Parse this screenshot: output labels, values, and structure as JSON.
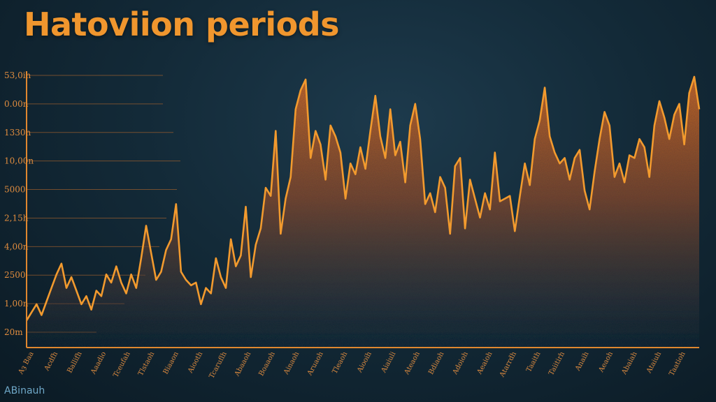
{
  "title": "Hatoviion periods",
  "corner_label": "ABinauh",
  "colors": {
    "line": "#f29a2e",
    "axis": "#e0872f",
    "gridline": "#c4702c",
    "title": "#f0962e",
    "background": "#132a38"
  },
  "chart_data": {
    "type": "area",
    "title": "Hatoviion periods",
    "xlabel": "",
    "ylabel": "",
    "grid": true,
    "y_tick_labels": [
      "53,0in",
      "0.00n",
      "1330h",
      "10,00n",
      "5000",
      "2,15h",
      "4,00n",
      "2500",
      "1,00n",
      "20m"
    ],
    "x_tick_labels": [
      "Aȝ Baa",
      "Acdfh",
      "Ballifh",
      "Aaadio",
      "Tceufah",
      "Tlstaoh",
      "Biaaon",
      "Aiooth",
      "Tcaruflh",
      "Abaaoh",
      "Boaaoh",
      "Ainaoh",
      "Aruaoh",
      "Tleaoh",
      "Aiooih",
      "Aiaiuli",
      "Ateaoh",
      "Bdiaoh",
      "Adoioh",
      "Aeaioh",
      "Atarrdh",
      "Taaith",
      "Taiitirh",
      "Anaih",
      "Aeaoh",
      "Abaiah",
      "Ataiuh",
      "Taatioh"
    ],
    "x": [
      0,
      1,
      2,
      3,
      4,
      5,
      6,
      7,
      8,
      9,
      10,
      11,
      12,
      13,
      14,
      15,
      16,
      17,
      18,
      19,
      20,
      21,
      22,
      23,
      24,
      25,
      26,
      27,
      28,
      29,
      30,
      31,
      32,
      33,
      34,
      35,
      36,
      37,
      38,
      39,
      40,
      41,
      42,
      43,
      44,
      45,
      46,
      47,
      48,
      49,
      50,
      51,
      52,
      53,
      54,
      55,
      56,
      57,
      58,
      59,
      60,
      61,
      62,
      63,
      64,
      65,
      66,
      67,
      68,
      69,
      70,
      71,
      72,
      73,
      74,
      75,
      76,
      77,
      78,
      79,
      80,
      81,
      82,
      83,
      84,
      85,
      86,
      87,
      88,
      89,
      90,
      91,
      92,
      93,
      94,
      95,
      96,
      97,
      98,
      99,
      100,
      101,
      102,
      103,
      104,
      105,
      106,
      107,
      108,
      109,
      110,
      111,
      112,
      113,
      114,
      115,
      116,
      117,
      118,
      119,
      120,
      121,
      122,
      123,
      124,
      125,
      126,
      127,
      128,
      129,
      130,
      131,
      132,
      133,
      134,
      135
    ],
    "values": [
      0.1,
      0.13,
      0.16,
      0.12,
      0.17,
      0.22,
      0.27,
      0.31,
      0.22,
      0.26,
      0.21,
      0.16,
      0.19,
      0.14,
      0.21,
      0.19,
      0.27,
      0.24,
      0.3,
      0.24,
      0.2,
      0.27,
      0.22,
      0.33,
      0.45,
      0.35,
      0.25,
      0.28,
      0.36,
      0.4,
      0.53,
      0.28,
      0.25,
      0.23,
      0.24,
      0.16,
      0.22,
      0.2,
      0.33,
      0.26,
      0.22,
      0.4,
      0.3,
      0.34,
      0.52,
      0.26,
      0.38,
      0.44,
      0.59,
      0.56,
      0.8,
      0.42,
      0.55,
      0.63,
      0.88,
      0.95,
      0.99,
      0.7,
      0.8,
      0.75,
      0.62,
      0.82,
      0.78,
      0.72,
      0.55,
      0.68,
      0.64,
      0.74,
      0.66,
      0.8,
      0.93,
      0.78,
      0.7,
      0.88,
      0.71,
      0.76,
      0.61,
      0.82,
      0.9,
      0.77,
      0.53,
      0.57,
      0.5,
      0.63,
      0.59,
      0.42,
      0.67,
      0.7,
      0.44,
      0.62,
      0.55,
      0.48,
      0.57,
      0.51,
      0.72,
      0.54,
      0.55,
      0.56,
      0.43,
      0.56,
      0.68,
      0.6,
      0.77,
      0.84,
      0.96,
      0.78,
      0.72,
      0.68,
      0.7,
      0.62,
      0.7,
      0.73,
      0.58,
      0.51,
      0.65,
      0.77,
      0.87,
      0.82,
      0.63,
      0.68,
      0.61,
      0.71,
      0.7,
      0.77,
      0.74,
      0.63,
      0.82,
      0.91,
      0.85,
      0.77,
      0.86,
      0.9,
      0.75,
      0.94,
      1.0,
      0.88
    ],
    "ylim": [
      0,
      1
    ],
    "xlim": [
      0,
      135
    ]
  }
}
